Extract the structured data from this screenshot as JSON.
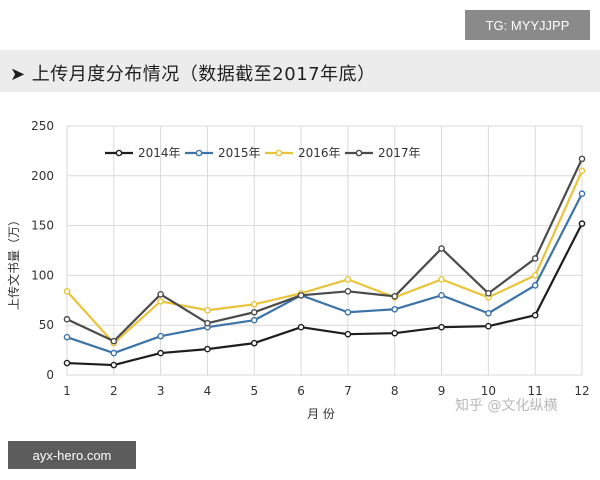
{
  "header": {
    "title": "➤ 上传月度分布情况（数据截至2017年底）"
  },
  "watermarks": {
    "tg": "TG: MYYJJPP",
    "site": "ayx-hero.com",
    "zhihu": "知乎 @文化纵横"
  },
  "chart_data": {
    "type": "line",
    "xlabel": "月 份",
    "ylabel": "上传文书量（万）",
    "ylim": [
      0,
      250
    ],
    "yticks": [
      "0",
      "50",
      "100",
      "150",
      "200",
      "250"
    ],
    "categories": [
      "1",
      "2",
      "3",
      "4",
      "5",
      "6",
      "7",
      "8",
      "9",
      "10",
      "11",
      "12"
    ],
    "legend_position": "top",
    "grid": true,
    "series": [
      {
        "name": "2014年",
        "color": "#1e1e1e",
        "values": [
          12,
          10,
          22,
          26,
          32,
          48,
          41,
          42,
          48,
          49,
          60,
          152
        ]
      },
      {
        "name": "2015年",
        "color": "#3d74a8",
        "values": [
          38,
          22,
          39,
          48,
          55,
          80,
          63,
          66,
          80,
          62,
          90,
          182
        ]
      },
      {
        "name": "2016年",
        "color": "#e9c33a",
        "values": [
          84,
          32,
          74,
          65,
          71,
          82,
          96,
          78,
          96,
          78,
          100,
          205
        ]
      },
      {
        "name": "2017年",
        "color": "#4b4b4b",
        "values": [
          56,
          34,
          81,
          52,
          63,
          80,
          84,
          79,
          127,
          82,
          117,
          217
        ]
      }
    ]
  }
}
